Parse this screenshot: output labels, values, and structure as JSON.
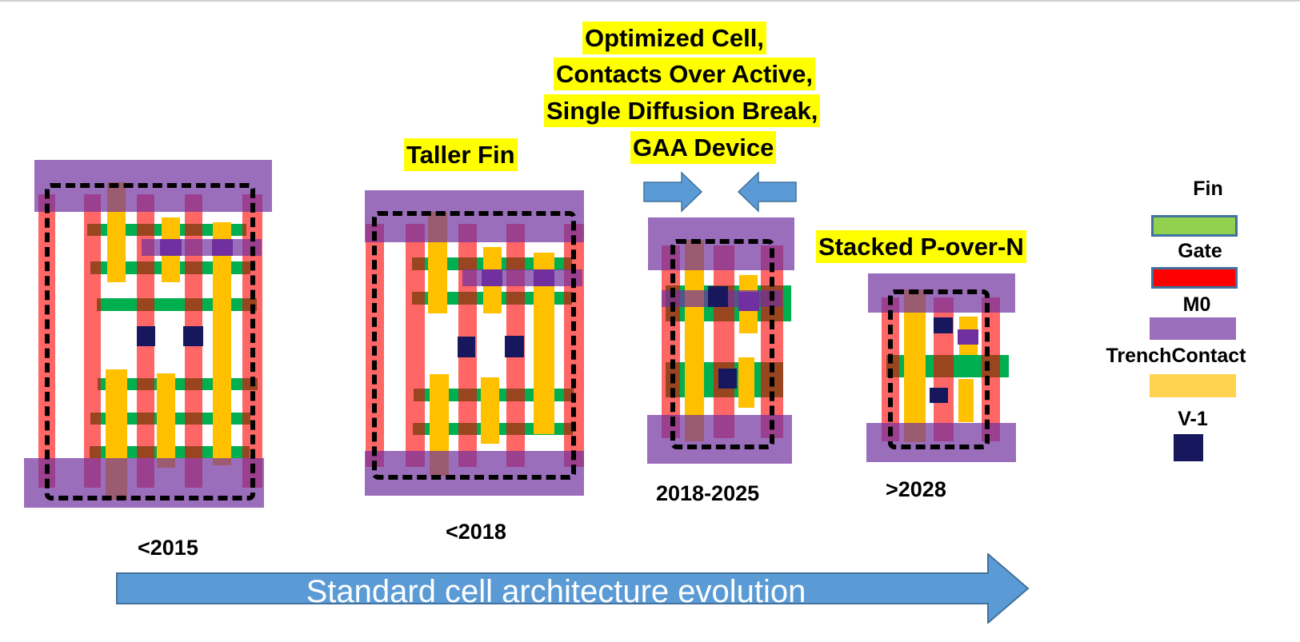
{
  "labels": {
    "optimized": [
      "Optimized Cell,",
      "Contacts Over Active,",
      "Single Diffusion Break,",
      "GAA Device"
    ],
    "taller_fin": "Taller Fin",
    "stacked": "Stacked P-over-N"
  },
  "cells": [
    {
      "year": "<2015"
    },
    {
      "year": "<2018"
    },
    {
      "year": "2018-2025"
    },
    {
      "year": ">2028"
    }
  ],
  "evolution_arrow": {
    "label": "Standard cell architecture evolution",
    "color": "#5b9bd5"
  },
  "legend": [
    {
      "label": "Fin",
      "color": "#92d050"
    },
    {
      "label": "Gate",
      "color": "#ff0000"
    },
    {
      "label": "M0",
      "color": "#9b6fbb"
    },
    {
      "label": "TrenchContact",
      "color": "#ffd34f"
    },
    {
      "label": "V-1",
      "color": "#17175e"
    }
  ],
  "colors": {
    "fin": "#00b050",
    "gate": "rgba(255,0,0,0.6)",
    "trench": "#ffc000",
    "m0": "rgba(112,48,160,0.7)",
    "via": "#17175e",
    "via_m0": "#7030a0",
    "highlight": "#ffff00"
  }
}
